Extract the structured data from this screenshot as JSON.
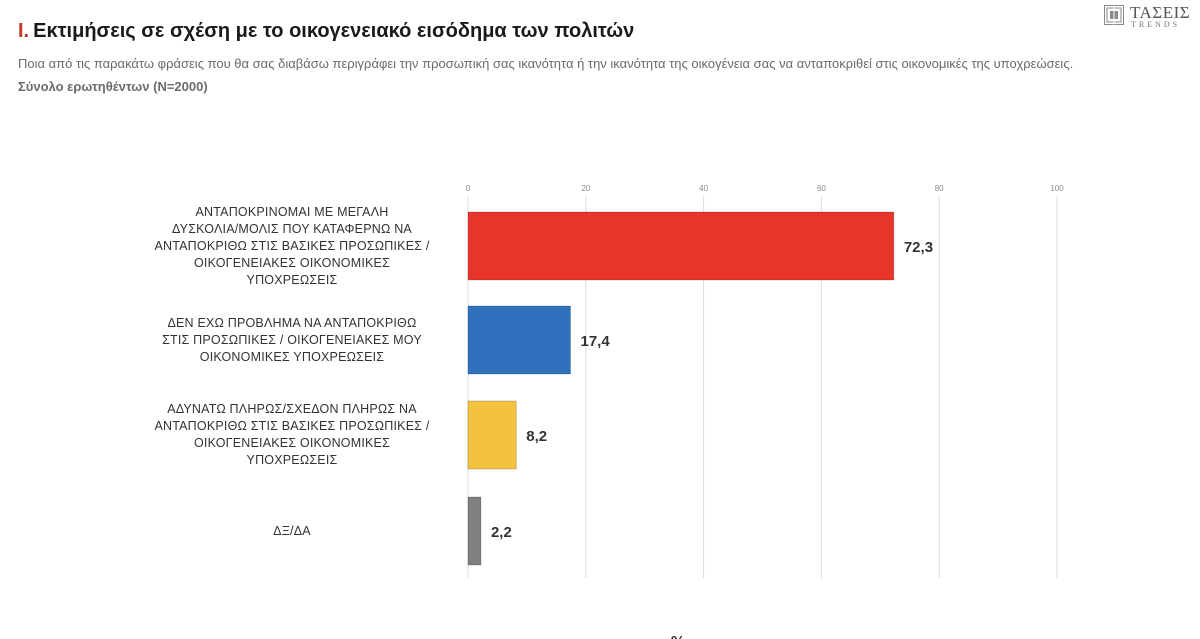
{
  "header": {
    "roman": "I.",
    "title": "Εκτιμήσεις σε σχέση με το οικογενειακό εισόδημα των πολιτών",
    "subtitle": "Ποια από τις παρακάτω φράσεις που θα σας διαβάσω περιγράφει την προσωπική σας ικανότητα ή την ικανότητα της οικογένεια σας να ανταποκριθεί στις οικονομικές της  υποχρεώσεις.",
    "sample": "Σύνολο ερωτηθέντων (N=2000)"
  },
  "logo": {
    "name": "ΤΑΣΕΙΣ",
    "sub": "TRENDS"
  },
  "chart_data": {
    "type": "bar",
    "orientation": "horizontal",
    "categories": [
      "ΑΝΤΑΠΟΚΡΙΝΟΜΑΙ ΜΕ ΜΕΓΑΛΗ ΔΥΣΚΟΛΙΑ/ΜΟΛΙΣ ΠΟΥ ΚΑΤΑΦΕΡΝΩ ΝΑ ΑΝΤΑΠΟΚΡΙΘΩ ΣΤΙΣ ΒΑΣΙΚΕΣ ΠΡΟΣΩΠΙΚΕΣ / ΟΙΚΟΓΕΝΕΙΑΚΕΣ ΟΙΚΟΝΟΜΙΚΕΣ ΥΠΟΧΡΕΩΣΕΙΣ",
      "ΔΕΝ ΕΧΩ ΠΡΟΒΛΗΜΑ ΝΑ ΑΝΤΑΠΟΚΡΙΘΩ ΣΤΙΣ ΠΡΟΣΩΠΙΚΕΣ / ΟΙΚΟΓΕΝΕΙΑΚΕΣ ΜΟΥ ΟΙΚΟΝΟΜΙΚΕΣ ΥΠΟΧΡΕΩΣΕΙΣ",
      "ΑΔΥΝΑΤΩ ΠΛΗΡΩΣ/ΣΧΕΔΟΝ ΠΛΗΡΩΣ ΝΑ ΑΝΤΑΠΟΚΡΙΘΩ ΣΤΙΣ ΒΑΣΙΚΕΣ ΠΡΟΣΩΠΙΚΕΣ / ΟΙΚΟΓΕΝΕΙΑΚΕΣ ΟΙΚΟΝΟΜΙΚΕΣ ΥΠΟΧΡΕΩΣΕΙΣ",
      "ΔΞ/ΔΑ"
    ],
    "label_lines": [
      [
        "ΑΝΤΑΠΟΚΡΙΝΟΜΑΙ ΜΕ ΜΕΓΑΛΗ",
        "ΔΥΣΚΟΛΙΑ/ΜΟΛΙΣ ΠΟΥ ΚΑΤΑΦΕΡΝΩ ΝΑ",
        "ΑΝΤΑΠΟΚΡΙΘΩ ΣΤΙΣ ΒΑΣΙΚΕΣ ΠΡΟΣΩΠΙΚΕΣ /",
        "ΟΙΚΟΓΕΝΕΙΑΚΕΣ ΟΙΚΟΝΟΜΙΚΕΣ",
        "ΥΠΟΧΡΕΩΣΕΙΣ"
      ],
      [
        "ΔΕΝ ΕΧΩ ΠΡΟΒΛΗΜΑ ΝΑ ΑΝΤΑΠΟΚΡΙΘΩ",
        "ΣΤΙΣ ΠΡΟΣΩΠΙΚΕΣ / ΟΙΚΟΓΕΝΕΙΑΚΕΣ ΜΟΥ",
        "ΟΙΚΟΝΟΜΙΚΕΣ ΥΠΟΧΡΕΩΣΕΙΣ"
      ],
      [
        "ΑΔΥΝΑΤΩ ΠΛΗΡΩΣ/ΣΧΕΔΟΝ ΠΛΗΡΩΣ ΝΑ",
        "ΑΝΤΑΠΟΚΡΙΘΩ ΣΤΙΣ ΒΑΣΙΚΕΣ ΠΡΟΣΩΠΙΚΕΣ /",
        "ΟΙΚΟΓΕΝΕΙΑΚΕΣ ΟΙΚΟΝΟΜΙΚΕΣ",
        "ΥΠΟΧΡΕΩΣΕΙΣ"
      ],
      [
        "ΔΞ/ΔΑ"
      ]
    ],
    "values": [
      72.3,
      17.4,
      8.2,
      2.2
    ],
    "value_labels": [
      "72,3",
      "17,4",
      "8,2",
      "2,2"
    ],
    "colors": [
      "#e8352a",
      "#3070bd",
      "#f3c33f",
      "#808080"
    ],
    "xlim": [
      0,
      100
    ],
    "xticks": [
      0,
      20,
      40,
      60,
      80,
      100
    ],
    "xtick_labels": [
      "0",
      "20",
      "40",
      "60",
      "80",
      "100"
    ],
    "xlabel": "%",
    "grid": true,
    "axis_position": "top"
  }
}
